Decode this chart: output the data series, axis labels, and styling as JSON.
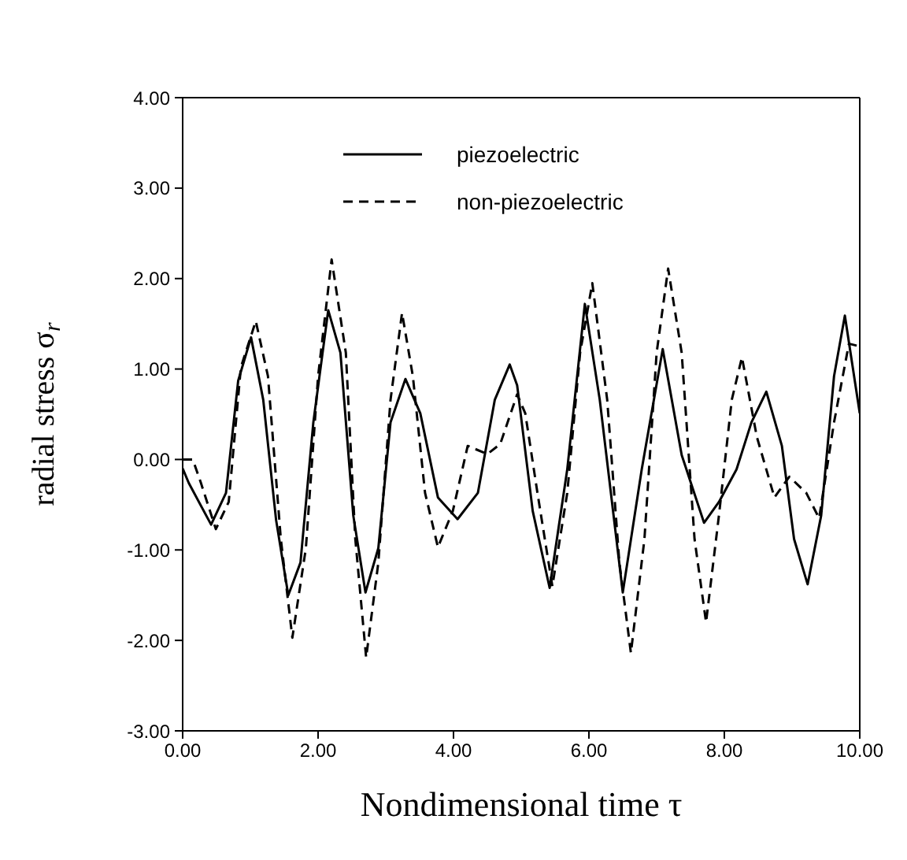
{
  "chart_data": {
    "type": "line",
    "xlabel": "Nondimensional time τ",
    "ylabel": "radial stress σ$_{r}$",
    "xlim": [
      0,
      10
    ],
    "ylim": [
      -3,
      4
    ],
    "xticks": [
      {
        "value": 0,
        "label": "0.00"
      },
      {
        "value": 2,
        "label": "2.00"
      },
      {
        "value": 4,
        "label": "4.00"
      },
      {
        "value": 6,
        "label": "6.00"
      },
      {
        "value": 8,
        "label": "8.00"
      },
      {
        "value": 10,
        "label": "10.00"
      }
    ],
    "yticks": [
      {
        "value": -3,
        "label": "-3.00"
      },
      {
        "value": -2,
        "label": "-2.00"
      },
      {
        "value": -1,
        "label": "-1.00"
      },
      {
        "value": 0,
        "label": "0.00"
      },
      {
        "value": 1,
        "label": "1.00"
      },
      {
        "value": 2,
        "label": "2.00"
      },
      {
        "value": 3,
        "label": "3.00"
      },
      {
        "value": 4,
        "label": "4.00"
      }
    ],
    "grid": false,
    "legend": "top",
    "marker": "none",
    "series": [
      {
        "name": "piezoelectric",
        "color": "#000000",
        "line_style": "solid",
        "x": [
          0,
          0.09,
          0.42,
          0.64,
          0.82,
          1.01,
          1.19,
          1.38,
          1.56,
          1.74,
          1.93,
          2.15,
          2.33,
          2.52,
          2.7,
          2.89,
          3.07,
          3.29,
          3.51,
          3.77,
          4.06,
          4.36,
          4.61,
          4.83,
          4.94,
          5.17,
          5.42,
          5.68,
          5.94,
          6.16,
          6.5,
          6.78,
          7.09,
          7.37,
          7.7,
          7.92,
          8.18,
          8.4,
          8.62,
          8.85,
          9.03,
          9.23,
          9.43,
          9.62,
          9.78,
          10
        ],
        "values": [
          -0.1,
          -0.26,
          -0.72,
          -0.37,
          0.87,
          1.35,
          0.66,
          -0.67,
          -1.5,
          -1.14,
          0.41,
          1.65,
          1.18,
          -0.62,
          -1.47,
          -0.98,
          0.41,
          0.89,
          0.51,
          -0.42,
          -0.66,
          -0.37,
          0.66,
          1.05,
          0.82,
          -0.57,
          -1.42,
          -0.11,
          1.72,
          0.66,
          -1.47,
          -0.11,
          1.22,
          0.05,
          -0.7,
          -0.47,
          -0.11,
          0.41,
          0.75,
          0.15,
          -0.88,
          -1.38,
          -0.62,
          0.92,
          1.59,
          0.51
        ]
      },
      {
        "name": "non-piezoelectric",
        "color": "#000000",
        "line_style": "dashed",
        "x": [
          0,
          0.15,
          0.27,
          0.49,
          0.68,
          0.86,
          1.08,
          1.26,
          1.45,
          1.62,
          1.82,
          2,
          2.2,
          2.41,
          2.55,
          2.71,
          2.89,
          3.07,
          3.24,
          3.4,
          3.58,
          3.77,
          3.99,
          4.21,
          4.5,
          4.69,
          4.94,
          5.06,
          5.24,
          5.46,
          5.68,
          5.87,
          6.05,
          6.27,
          6.45,
          6.62,
          6.82,
          7,
          7.17,
          7.37,
          7.56,
          7.73,
          7.92,
          8.11,
          8.26,
          8.48,
          8.74,
          8.96,
          9.21,
          9.4,
          9.62,
          9.84,
          10
        ],
        "values": [
          0,
          0,
          -0.26,
          -0.77,
          -0.47,
          1.02,
          1.53,
          0.92,
          -0.88,
          -1.97,
          -0.98,
          0.92,
          2.21,
          1.18,
          -0.88,
          -2.19,
          -1.14,
          0.66,
          1.62,
          0.92,
          -0.37,
          -0.97,
          -0.57,
          0.15,
          0.06,
          0.17,
          0.72,
          0.51,
          -0.37,
          -1.4,
          -0.37,
          1.18,
          1.95,
          0.66,
          -1.14,
          -2.14,
          -0.88,
          1.18,
          2.11,
          1.18,
          -0.88,
          -1.8,
          -0.62,
          0.66,
          1.13,
          0.25,
          -0.42,
          -0.19,
          -0.37,
          -0.65,
          0.41,
          1.28,
          1.25
        ]
      }
    ]
  }
}
